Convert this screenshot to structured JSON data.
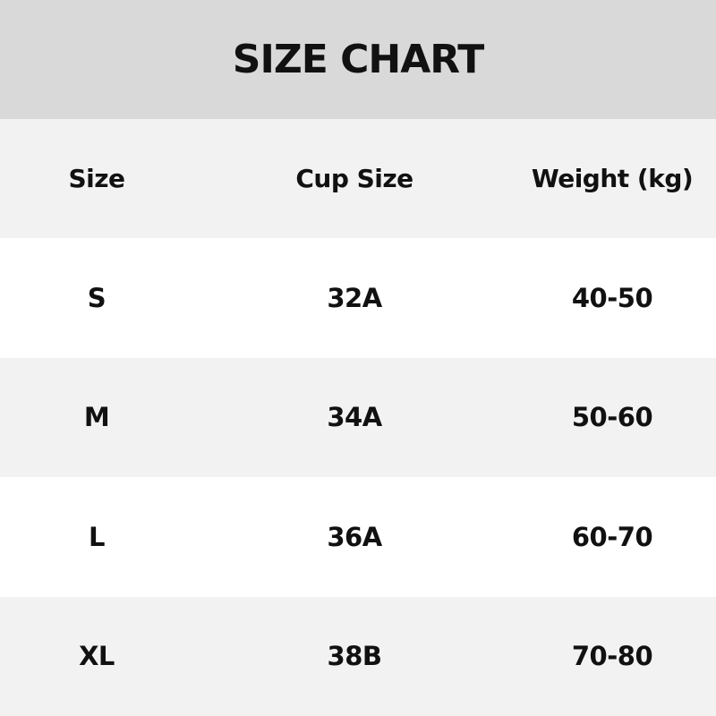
{
  "title": "SIZE CHART",
  "headers": [
    "Size",
    "Cup Size",
    "Weight (kg)"
  ],
  "rows": [
    [
      "S",
      "32A",
      "40-50"
    ],
    [
      "M",
      "34A",
      "50-60"
    ],
    [
      "L",
      "36A",
      "60-70"
    ],
    [
      "XL",
      "38B",
      "70-80"
    ]
  ],
  "colors": {
    "title_bg": "#d9d9d9",
    "band_bg": "#f2f2f2",
    "row_bg": "#ffffff"
  }
}
